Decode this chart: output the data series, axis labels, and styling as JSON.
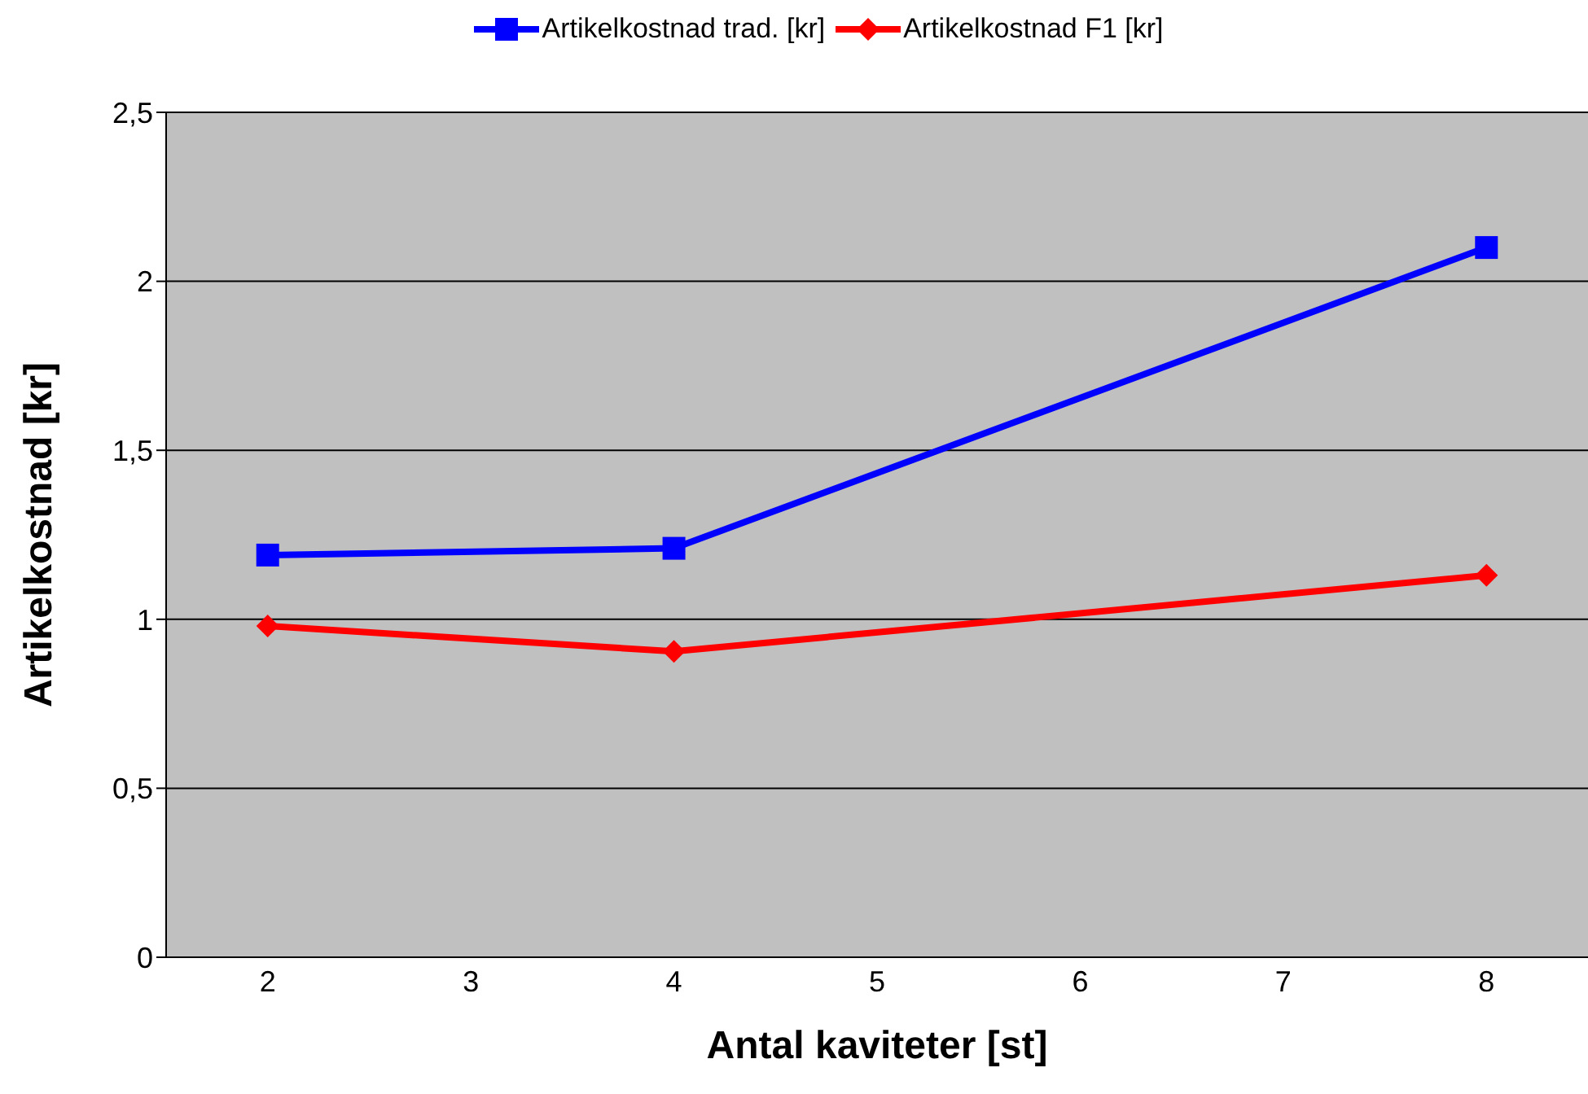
{
  "chart_data": {
    "type": "line",
    "xlabel": "Antal kaviteter [st]",
    "ylabel": "Artikelkostnad [kr]",
    "x": [
      2,
      4,
      8
    ],
    "series": [
      {
        "name": "Artikelkostnad trad. [kr]",
        "color": "#0000ff",
        "marker": "square",
        "values": [
          1.19,
          1.21,
          2.1
        ]
      },
      {
        "name": "Artikelkostnad F1 [kr]",
        "color": "#ff0000",
        "marker": "diamond",
        "values": [
          0.98,
          0.905,
          1.13
        ]
      }
    ],
    "xlim": [
      1.5,
      8.5
    ],
    "xticks": [
      2,
      3,
      4,
      5,
      6,
      7,
      8
    ],
    "ylim": [
      0,
      2.5
    ],
    "yticks": [
      0,
      {
        "value": 0.5,
        "label": "0,5"
      },
      1,
      {
        "value": 1.5,
        "label": "1,5"
      },
      2,
      {
        "value": 2.5,
        "label": "2,5"
      }
    ],
    "grid": "y",
    "legend": "top",
    "line_style": "solid"
  }
}
